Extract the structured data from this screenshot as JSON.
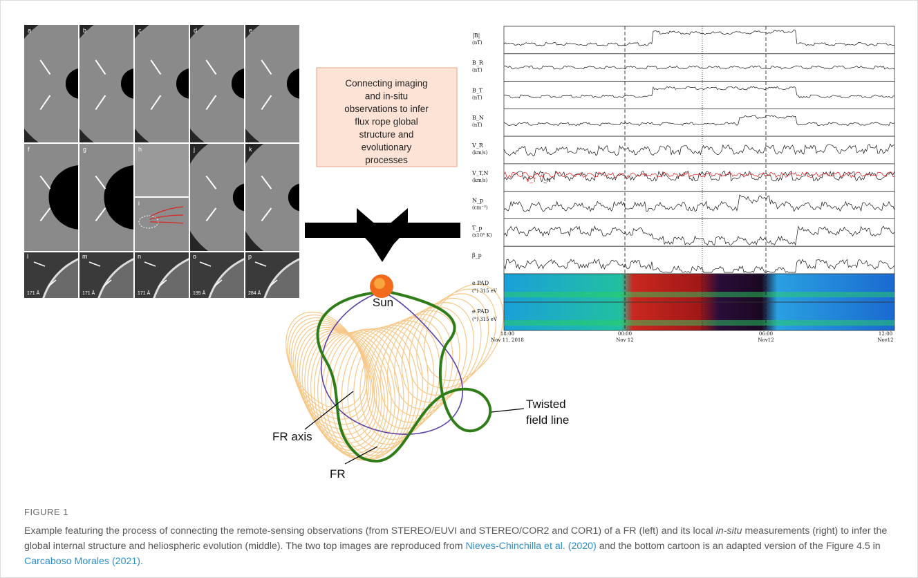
{
  "figure": {
    "left_panels": {
      "row1": [
        "a",
        "b",
        "c",
        "d",
        "e"
      ],
      "row2": [
        "f",
        "g",
        "h",
        "i",
        "j",
        "k"
      ],
      "row3": [
        "l",
        "m",
        "n",
        "o",
        "p"
      ],
      "wavelengths": [
        "171 Å",
        "171 Å",
        "171 Å",
        "195 Å",
        "284 Å"
      ]
    },
    "box_text": [
      "Connecting imaging",
      "and in-situ",
      "observations to infer",
      "flux rope global",
      "structure and",
      "evolutionary",
      "processes"
    ],
    "cartoon": {
      "sun": "Sun",
      "fr_axis": "FR axis",
      "twisted": [
        "Twisted",
        "field line"
      ],
      "fr": "FR"
    },
    "insitu": {
      "panels": [
        "|B|",
        "B_R",
        "B_T",
        "B_N",
        "V_R",
        "V_T,N",
        "N_p",
        "T_p",
        "β_p",
        "e PAD",
        "e PAD"
      ],
      "units": [
        "(nT)",
        "(nT)",
        "(nT)",
        "(nT)",
        "(km/s)",
        "(km/s)",
        "(cm⁻³)",
        "(x10⁵ K)",
        "",
        "(°) 315 eV",
        "(°) 315 eV"
      ],
      "legend": [
        "V_T",
        "V_N"
      ],
      "xticks": [
        [
          "18:00",
          "Nov 11, 2018"
        ],
        [
          "00:00",
          "Nov 12"
        ],
        [
          "06:00",
          "Nov12"
        ],
        [
          "12:00",
          "Nov12"
        ]
      ]
    }
  },
  "caption": {
    "label": "FIGURE 1",
    "parts": [
      "Example featuring the process of connecting the remote-sensing observations (from STEREO/EUVI and STEREO/COR2 and COR1) of a FR (left) and its local ",
      "in-situ",
      " measurements (right) to infer the global internal structure and heliospheric evolution (middle). The two top images are reproduced from ",
      "Nieves-Chinchilla et al. (2020)",
      " and the bottom cartoon is an adapted version of the Figure 4.5 in ",
      "Carcaboso Morales (2021)."
    ]
  }
}
